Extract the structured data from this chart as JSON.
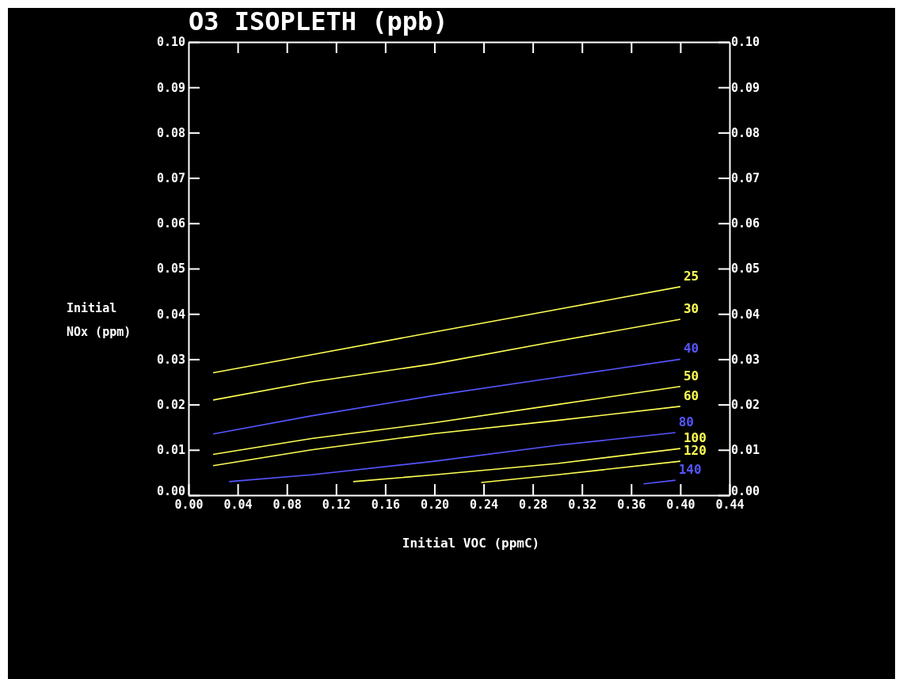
{
  "chart_data": {
    "type": "line",
    "title": "O3 ISOPLETH (ppb)",
    "xlabel": "Initial VOC (ppmC)",
    "ylabel": "Initial NOx (ppm)",
    "xlim": [
      0,
      0.44
    ],
    "ylim": [
      0,
      0.1
    ],
    "y2lim": [
      0,
      0.1
    ],
    "xticks": [
      {
        "value": 0,
        "label": "0.00"
      },
      {
        "value": 0.04,
        "label": "0.04"
      },
      {
        "value": 0.08,
        "label": "0.08"
      },
      {
        "value": 0.12,
        "label": "0.12"
      },
      {
        "value": 0.16,
        "label": "0.16"
      },
      {
        "value": 0.2,
        "label": "0.20"
      },
      {
        "value": 0.24,
        "label": "0.24"
      },
      {
        "value": 0.28,
        "label": "0.28"
      },
      {
        "value": 0.32,
        "label": "0.32"
      },
      {
        "value": 0.36,
        "label": "0.36"
      },
      {
        "value": 0.4,
        "label": "0.40"
      },
      {
        "value": 0.44,
        "label": "0.44"
      }
    ],
    "yticks": [
      {
        "value": 0,
        "label": "0.00"
      },
      0.01,
      0.02,
      0.03,
      0.04,
      0.05,
      0.06,
      0.07,
      0.08,
      0.09,
      {
        "value": 0.1,
        "label": "0.10"
      }
    ],
    "y2ticks": [
      {
        "value": 0,
        "label": "0.00"
      },
      0.01,
      0.02,
      0.03,
      0.04,
      0.05,
      0.06,
      0.07,
      0.08,
      0.09,
      {
        "value": 0.1,
        "label": "0.10"
      }
    ],
    "grid": false,
    "legend": false,
    "marker": "none",
    "line_style": "solid",
    "series": [
      {
        "name": "25",
        "color": "#ffff55",
        "x": [
          0.02,
          0.1,
          0.2,
          0.3,
          0.4
        ],
        "values": [
          0.027,
          0.031,
          0.036,
          0.041,
          0.046
        ]
      },
      {
        "name": "30",
        "color": "#ffff55",
        "x": [
          0.02,
          0.1,
          0.2,
          0.3,
          0.4
        ],
        "values": [
          0.021,
          0.025,
          0.029,
          0.034,
          0.0388
        ]
      },
      {
        "name": "40",
        "color": "#5555ff",
        "x": [
          0.02,
          0.1,
          0.2,
          0.3,
          0.4
        ],
        "values": [
          0.0135,
          0.0175,
          0.022,
          0.026,
          0.03
        ]
      },
      {
        "name": "50",
        "color": "#ffff55",
        "x": [
          0.02,
          0.1,
          0.2,
          0.3,
          0.4
        ],
        "values": [
          0.009,
          0.0125,
          0.016,
          0.02,
          0.024
        ]
      },
      {
        "name": "60",
        "color": "#ffff55",
        "x": [
          0.02,
          0.1,
          0.2,
          0.3,
          0.4
        ],
        "values": [
          0.0065,
          0.01,
          0.0136,
          0.0165,
          0.0196
        ]
      },
      {
        "name": "80",
        "color": "#5555ff",
        "x": [
          0.033,
          0.1,
          0.2,
          0.3,
          0.396
        ],
        "values": [
          0.003,
          0.0045,
          0.0075,
          0.011,
          0.0138
        ]
      },
      {
        "name": "100",
        "color": "#ffff55",
        "x": [
          0.134,
          0.2,
          0.3,
          0.4
        ],
        "values": [
          0.003,
          0.0045,
          0.007,
          0.0103
        ]
      },
      {
        "name": "120",
        "color": "#ffff55",
        "x": [
          0.238,
          0.3,
          0.4
        ],
        "values": [
          0.0028,
          0.0045,
          0.0075
        ]
      },
      {
        "name": "140",
        "color": "#5555ff",
        "x": [
          0.37,
          0.396
        ],
        "values": [
          0.0025,
          0.0033
        ]
      }
    ]
  }
}
